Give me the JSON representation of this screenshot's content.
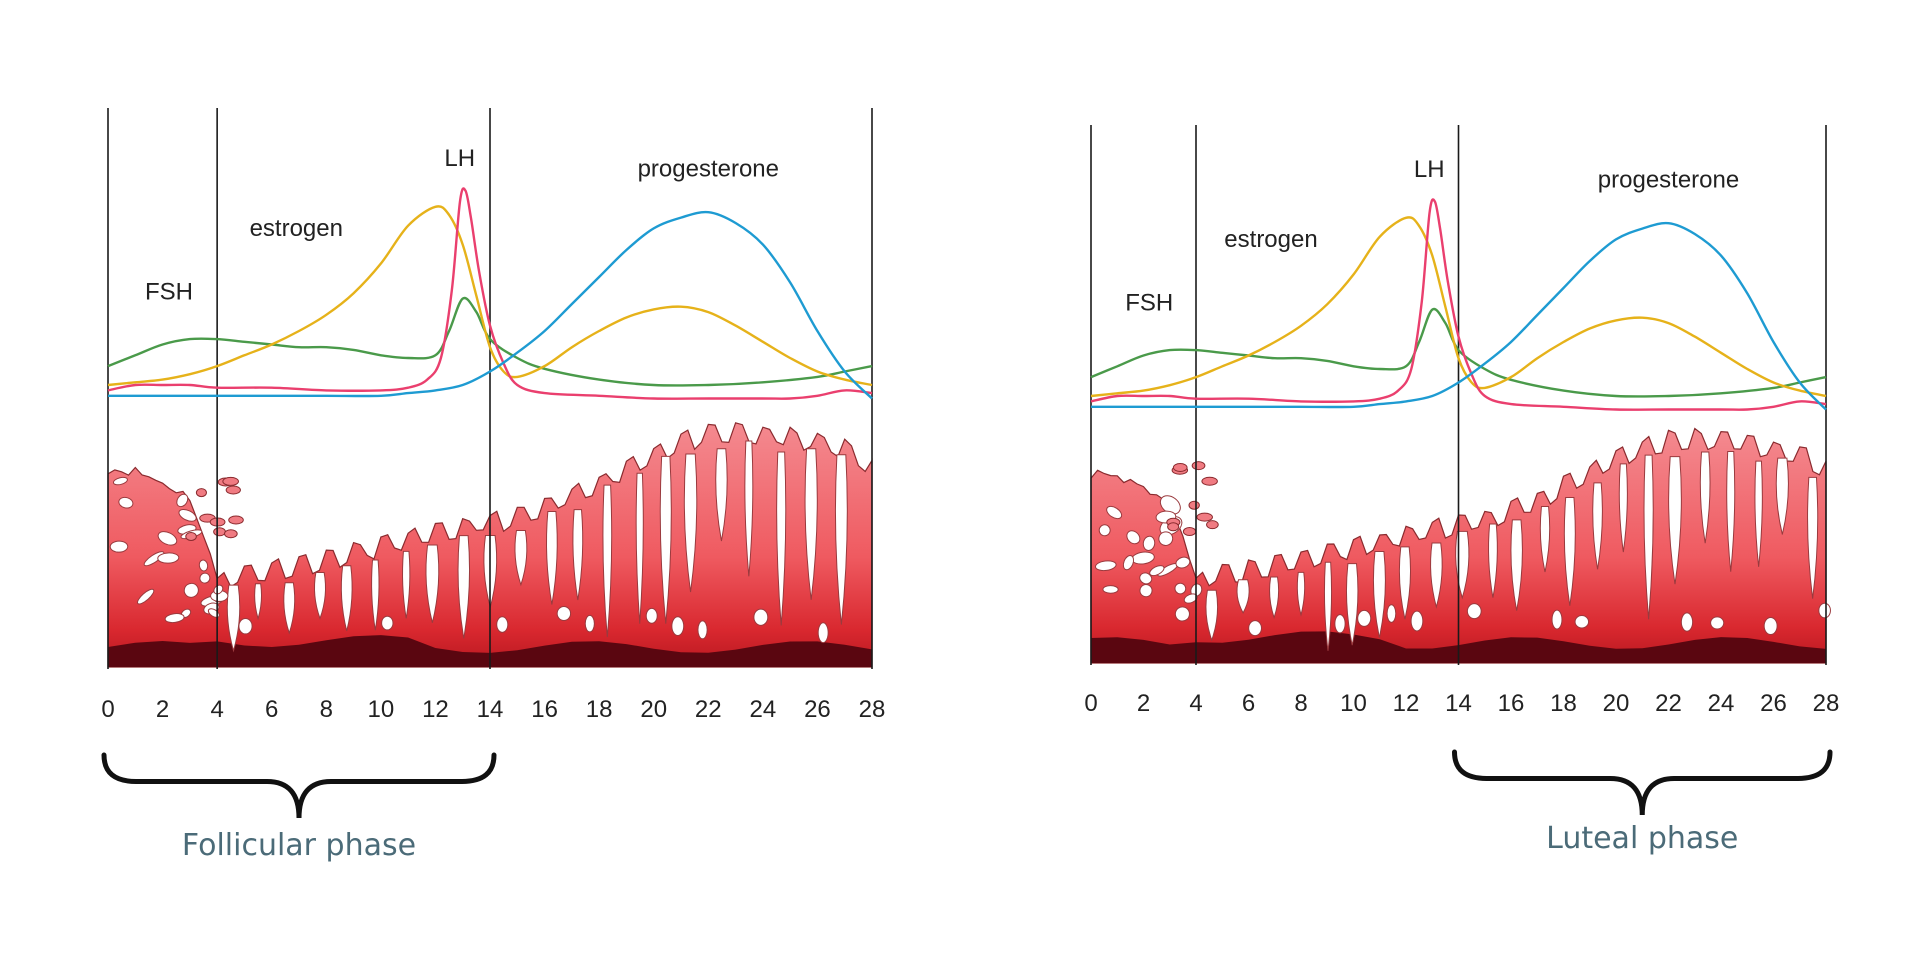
{
  "panels": [
    {
      "id": "left",
      "phase_label": "Follicular phase",
      "bracket_from_day": 0,
      "bracket_to_day": 14
    },
    {
      "id": "right",
      "phase_label": "Luteal phase",
      "bracket_from_day": 14,
      "bracket_to_day": 28
    }
  ],
  "day_ticks": [
    0,
    2,
    4,
    6,
    8,
    10,
    12,
    14,
    16,
    18,
    20,
    22,
    24,
    26,
    28
  ],
  "divider_days": [
    0,
    4,
    14,
    28
  ],
  "hormones": [
    {
      "name": "FSH",
      "color": "#4a9a4a",
      "label_day": 2.6,
      "points": [
        [
          0,
          0.07
        ],
        [
          1,
          0.11
        ],
        [
          2,
          0.15
        ],
        [
          3,
          0.17
        ],
        [
          4,
          0.17
        ],
        [
          5,
          0.16
        ],
        [
          6,
          0.15
        ],
        [
          7,
          0.14
        ],
        [
          8,
          0.14
        ],
        [
          9,
          0.13
        ],
        [
          10,
          0.11
        ],
        [
          11,
          0.1
        ],
        [
          12,
          0.11
        ],
        [
          12.5,
          0.2
        ],
        [
          13,
          0.32
        ],
        [
          13.5,
          0.27
        ],
        [
          14,
          0.17
        ],
        [
          15,
          0.1
        ],
        [
          16,
          0.06
        ],
        [
          18,
          0.02
        ],
        [
          20,
          0.0
        ],
        [
          22,
          0.0
        ],
        [
          24,
          0.01
        ],
        [
          26,
          0.03
        ],
        [
          27,
          0.05
        ],
        [
          28,
          0.07
        ]
      ]
    },
    {
      "name": "estrogen",
      "color": "#e6b21a",
      "label_day": 8,
      "points": [
        [
          0,
          0.0
        ],
        [
          1,
          0.01
        ],
        [
          2,
          0.02
        ],
        [
          3,
          0.04
        ],
        [
          4,
          0.07
        ],
        [
          5,
          0.11
        ],
        [
          6,
          0.15
        ],
        [
          7,
          0.2
        ],
        [
          8,
          0.26
        ],
        [
          9,
          0.34
        ],
        [
          10,
          0.45
        ],
        [
          11,
          0.59
        ],
        [
          12,
          0.66
        ],
        [
          12.5,
          0.63
        ],
        [
          13,
          0.52
        ],
        [
          13.5,
          0.33
        ],
        [
          14,
          0.14
        ],
        [
          14.5,
          0.05
        ],
        [
          15,
          0.03
        ],
        [
          16,
          0.07
        ],
        [
          17,
          0.14
        ],
        [
          18,
          0.2
        ],
        [
          19,
          0.25
        ],
        [
          20,
          0.28
        ],
        [
          21,
          0.29
        ],
        [
          22,
          0.27
        ],
        [
          23,
          0.22
        ],
        [
          24,
          0.16
        ],
        [
          25,
          0.1
        ],
        [
          26,
          0.05
        ],
        [
          27,
          0.02
        ],
        [
          28,
          0.0
        ]
      ]
    },
    {
      "name": "LH",
      "color": "#ea3f6e",
      "label_day": 13,
      "points": [
        [
          0,
          -0.02
        ],
        [
          1,
          0.0
        ],
        [
          2,
          0.0
        ],
        [
          3,
          0.0
        ],
        [
          4,
          -0.01
        ],
        [
          6,
          -0.01
        ],
        [
          8,
          -0.02
        ],
        [
          10,
          -0.02
        ],
        [
          11,
          -0.01
        ],
        [
          11.7,
          0.02
        ],
        [
          12.2,
          0.1
        ],
        [
          12.6,
          0.35
        ],
        [
          12.9,
          0.68
        ],
        [
          13.1,
          0.72
        ],
        [
          13.3,
          0.62
        ],
        [
          13.6,
          0.42
        ],
        [
          14,
          0.22
        ],
        [
          14.5,
          0.08
        ],
        [
          15,
          0.0
        ],
        [
          16,
          -0.03
        ],
        [
          18,
          -0.04
        ],
        [
          20,
          -0.05
        ],
        [
          22,
          -0.05
        ],
        [
          24,
          -0.05
        ],
        [
          25,
          -0.05
        ],
        [
          26,
          -0.04
        ],
        [
          27,
          -0.02
        ],
        [
          28,
          -0.03
        ]
      ]
    },
    {
      "name": "progesterone",
      "color": "#1e9bd2",
      "label_day": 22,
      "points": [
        [
          0,
          -0.04
        ],
        [
          2,
          -0.04
        ],
        [
          4,
          -0.04
        ],
        [
          6,
          -0.04
        ],
        [
          8,
          -0.04
        ],
        [
          10,
          -0.04
        ],
        [
          11,
          -0.03
        ],
        [
          12,
          -0.02
        ],
        [
          13,
          0.0
        ],
        [
          14,
          0.05
        ],
        [
          15,
          0.12
        ],
        [
          16,
          0.2
        ],
        [
          17,
          0.3
        ],
        [
          18,
          0.4
        ],
        [
          19,
          0.5
        ],
        [
          20,
          0.58
        ],
        [
          21,
          0.62
        ],
        [
          22,
          0.64
        ],
        [
          23,
          0.6
        ],
        [
          24,
          0.52
        ],
        [
          25,
          0.38
        ],
        [
          26,
          0.2
        ],
        [
          27,
          0.05
        ],
        [
          28,
          -0.05
        ]
      ]
    }
  ],
  "endometrium": {
    "thickness": [
      [
        0,
        0.84
      ],
      [
        1,
        0.83
      ],
      [
        2,
        0.78
      ],
      [
        3,
        0.72
      ],
      [
        4,
        0.38
      ],
      [
        5,
        0.4
      ],
      [
        6,
        0.42
      ],
      [
        7,
        0.44
      ],
      [
        8,
        0.46
      ],
      [
        9,
        0.49
      ],
      [
        10,
        0.52
      ],
      [
        11,
        0.55
      ],
      [
        12,
        0.57
      ],
      [
        13,
        0.6
      ],
      [
        14,
        0.62
      ],
      [
        15,
        0.64
      ],
      [
        16,
        0.68
      ],
      [
        17,
        0.73
      ],
      [
        18,
        0.79
      ],
      [
        19,
        0.85
      ],
      [
        20,
        0.91
      ],
      [
        21,
        0.96
      ],
      [
        22,
        0.99
      ],
      [
        23,
        1.0
      ],
      [
        24,
        0.99
      ],
      [
        25,
        0.98
      ],
      [
        26,
        0.96
      ],
      [
        27,
        0.93
      ],
      [
        28,
        0.86
      ]
    ],
    "base_color": "#5a0610",
    "top_color": "#f07b82",
    "deep_color": "#d11d25"
  }
}
